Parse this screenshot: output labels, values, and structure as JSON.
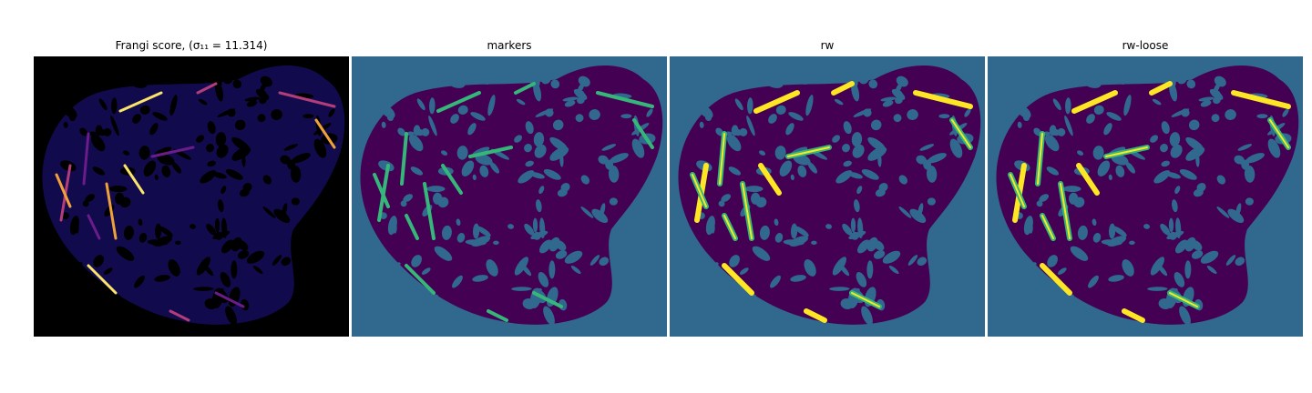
{
  "figure": {
    "panels": [
      {
        "title": "Frangi score, (σ₁₁ = 11.314)",
        "background": "#000000",
        "blob_color": "#110b4e",
        "hole_color": "#000000",
        "highlight_colors": [
          "#6b1c8a",
          "#b33d78",
          "#f0a13a",
          "#fbe46a"
        ]
      },
      {
        "title": "markers",
        "background": "#31688e",
        "blob_color": "#440154",
        "hole_color": "#31688e",
        "highlight_colors": [
          "#35b779"
        ]
      },
      {
        "title": "rw",
        "background": "#31688e",
        "blob_color": "#440154",
        "hole_color": "#31688e",
        "highlight_colors": [
          "#35b779",
          "#fde725"
        ]
      },
      {
        "title": "rw-loose",
        "background": "#31688e",
        "blob_color": "#440154",
        "hole_color": "#31688e",
        "highlight_colors": [
          "#35b779",
          "#fde725"
        ]
      }
    ]
  }
}
